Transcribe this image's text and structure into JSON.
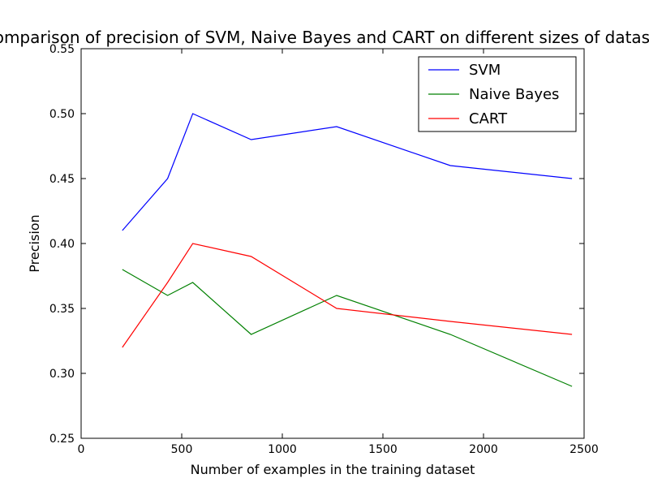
{
  "chart_data": {
    "type": "line",
    "title": "Comparison of precision of SVM, Naive Bayes and CART on different sizes of dataset",
    "xlabel": "Number of examples in the training dataset",
    "ylabel": "Precision",
    "xlim": [
      0,
      2500
    ],
    "ylim": [
      0.25,
      0.55
    ],
    "xticks": [
      0,
      500,
      1000,
      1500,
      2000,
      2500
    ],
    "xtick_labels": [
      "0",
      "500",
      "1000",
      "1500",
      "2000",
      "2500"
    ],
    "yticks": [
      0.25,
      0.3,
      0.35,
      0.4,
      0.45,
      0.5,
      0.55
    ],
    "ytick_labels": [
      "0.25",
      "0.30",
      "0.35",
      "0.40",
      "0.45",
      "0.50",
      "0.55"
    ],
    "grid": false,
    "legend_position": "top-right",
    "x": [
      205,
      430,
      555,
      845,
      1270,
      1835,
      2440
    ],
    "series": [
      {
        "name": "SVM",
        "color": "#0000ff",
        "values": [
          0.41,
          0.45,
          0.5,
          0.48,
          0.49,
          0.46,
          0.45
        ]
      },
      {
        "name": "Naive Bayes",
        "color": "#008000",
        "values": [
          0.38,
          0.36,
          0.37,
          0.33,
          0.36,
          0.33,
          0.29
        ]
      },
      {
        "name": "CART",
        "color": "#ff0000",
        "values": [
          0.32,
          0.37,
          0.4,
          0.39,
          0.35,
          0.34,
          0.33
        ]
      }
    ]
  }
}
